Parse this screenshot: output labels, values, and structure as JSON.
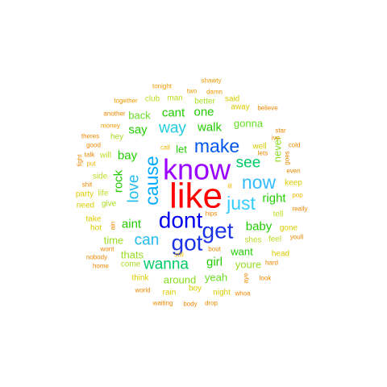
{
  "palette": {
    "red": "#ff0000",
    "purple": "#9900ff",
    "blue": "#0000ee",
    "blue_mid": "#1a33e6",
    "cyan": "#00bfff",
    "sky": "#33ccff",
    "green": "#22cc00",
    "green_light": "#66ee22",
    "lime": "#aaee22",
    "yellow": "#dddd00",
    "gold": "#eebb00",
    "orange": "#ee8800"
  },
  "words": [
    {
      "text": "like",
      "weight": 9,
      "color": "#ff0000"
    },
    {
      "text": "know",
      "weight": 8,
      "color": "#9900ff"
    },
    {
      "text": "dont",
      "weight": 7,
      "color": "#0000ee"
    },
    {
      "text": "got",
      "weight": 7,
      "color": "#1a33e6"
    },
    {
      "text": "get",
      "weight": 7,
      "color": "#1a33e6"
    },
    {
      "text": "make",
      "weight": 6,
      "color": "#0055ee"
    },
    {
      "text": "cause",
      "weight": 6,
      "color": "#00aaff"
    },
    {
      "text": "just",
      "weight": 6,
      "color": "#33ccff"
    },
    {
      "text": "now",
      "weight": 6,
      "color": "#33bbff"
    },
    {
      "text": "love",
      "weight": 5,
      "color": "#22bbee"
    },
    {
      "text": "way",
      "weight": 5,
      "color": "#22ccdd"
    },
    {
      "text": "can",
      "weight": 5,
      "color": "#22bbee"
    },
    {
      "text": "wanna",
      "weight": 5,
      "color": "#00cc66"
    },
    {
      "text": "see",
      "weight": 5,
      "color": "#00cc66"
    },
    {
      "text": "baby",
      "weight": 4,
      "color": "#22cc00"
    },
    {
      "text": "girl",
      "weight": 4,
      "color": "#22cc00"
    },
    {
      "text": "aint",
      "weight": 4,
      "color": "#22cc00"
    },
    {
      "text": "right",
      "weight": 4,
      "color": "#22cc00"
    },
    {
      "text": "walk",
      "weight": 4,
      "color": "#22cc00"
    },
    {
      "text": "rock",
      "weight": 4,
      "color": "#22cc00"
    },
    {
      "text": "bay",
      "weight": 4,
      "color": "#22cc00"
    },
    {
      "text": "say",
      "weight": 4,
      "color": "#22cc00"
    },
    {
      "text": "cant",
      "weight": 4,
      "color": "#22cc00"
    },
    {
      "text": "one",
      "weight": 4,
      "color": "#22cc00"
    },
    {
      "text": "back",
      "weight": 3,
      "color": "#66dd22"
    },
    {
      "text": "let",
      "weight": 3,
      "color": "#22cc00"
    },
    {
      "text": "gonna",
      "weight": 3,
      "color": "#66dd22"
    },
    {
      "text": "want",
      "weight": 3,
      "color": "#22cc00"
    },
    {
      "text": "yeah",
      "weight": 3,
      "color": "#66dd22"
    },
    {
      "text": "around",
      "weight": 3,
      "color": "#88dd22"
    },
    {
      "text": "youre",
      "weight": 3,
      "color": "#99dd22"
    },
    {
      "text": "never",
      "weight": 3,
      "color": "#88dd22"
    },
    {
      "text": "time",
      "weight": 3,
      "color": "#99dd22"
    },
    {
      "text": "thats",
      "weight": 3,
      "color": "#99dd22"
    },
    {
      "text": "come",
      "weight": 2,
      "color": "#aadd22"
    },
    {
      "text": "better",
      "weight": 2,
      "color": "#aadd22"
    },
    {
      "text": "man",
      "weight": 2,
      "color": "#bbdd22"
    },
    {
      "text": "club",
      "weight": 2,
      "color": "#bbdd22"
    },
    {
      "text": "hey",
      "weight": 2,
      "color": "#aadd22"
    },
    {
      "text": "give",
      "weight": 2,
      "color": "#aadd22"
    },
    {
      "text": "side",
      "weight": 2,
      "color": "#bbdd22"
    },
    {
      "text": "life",
      "weight": 2,
      "color": "#bbdd22"
    },
    {
      "text": "will",
      "weight": 2,
      "color": "#bbdd22"
    },
    {
      "text": "tell",
      "weight": 2,
      "color": "#bbdd22"
    },
    {
      "text": "feel",
      "weight": 2,
      "color": "#bbdd22"
    },
    {
      "text": "shes",
      "weight": 2,
      "color": "#bbdd22"
    },
    {
      "text": "head",
      "weight": 2,
      "color": "#ddcc00"
    },
    {
      "text": "away",
      "weight": 2,
      "color": "#ddcc00"
    },
    {
      "text": "said",
      "weight": 2,
      "color": "#ddcc00"
    },
    {
      "text": "think",
      "weight": 2,
      "color": "#ddcc00"
    },
    {
      "text": "boy",
      "weight": 2,
      "color": "#ddcc00"
    },
    {
      "text": "night",
      "weight": 2,
      "color": "#ddcc00"
    },
    {
      "text": "rain",
      "weight": 2,
      "color": "#ddcc00"
    },
    {
      "text": "need",
      "weight": 2,
      "color": "#ddcc00"
    },
    {
      "text": "party",
      "weight": 2,
      "color": "#ddcc00"
    },
    {
      "text": "take",
      "weight": 2,
      "color": "#ddcc00"
    },
    {
      "text": "hot",
      "weight": 2,
      "color": "#ddcc00"
    },
    {
      "text": "well",
      "weight": 2,
      "color": "#ddcc00"
    },
    {
      "text": "gone",
      "weight": 2,
      "color": "#ddcc00"
    },
    {
      "text": "keep",
      "weight": 2,
      "color": "#ddcc00"
    },
    {
      "text": "pop",
      "weight": 1,
      "color": "#eebb00"
    },
    {
      "text": "ill",
      "weight": 1,
      "color": "#eebb00"
    },
    {
      "text": "call",
      "weight": 1,
      "color": "#eebb00"
    },
    {
      "text": "still",
      "weight": 1,
      "color": "#eebb00"
    },
    {
      "text": "put",
      "weight": 1,
      "color": "#eebb00"
    },
    {
      "text": "two",
      "weight": 1,
      "color": "#ee9900"
    },
    {
      "text": "shawty",
      "weight": 1,
      "color": "#ee9900"
    },
    {
      "text": "tonight",
      "weight": 1,
      "color": "#ee9900"
    },
    {
      "text": "damn",
      "weight": 1,
      "color": "#ee9900"
    },
    {
      "text": "together",
      "weight": 1,
      "color": "#ee9900"
    },
    {
      "text": "believe",
      "weight": 1,
      "color": "#ee8800"
    },
    {
      "text": "another",
      "weight": 1,
      "color": "#ee8800"
    },
    {
      "text": "money",
      "weight": 1,
      "color": "#ee9900"
    },
    {
      "text": "star",
      "weight": 1,
      "color": "#ee8800"
    },
    {
      "text": "ive",
      "weight": 1,
      "color": "#ee8800"
    },
    {
      "text": "theres",
      "weight": 1,
      "color": "#ee8800"
    },
    {
      "text": "good",
      "weight": 1,
      "color": "#ee8800"
    },
    {
      "text": "talk",
      "weight": 1,
      "color": "#ee8800"
    },
    {
      "text": "cold",
      "weight": 1,
      "color": "#ee8800"
    },
    {
      "text": "lets",
      "weight": 1,
      "color": "#ee8800"
    },
    {
      "text": "fight",
      "weight": 1,
      "color": "#ee8800"
    },
    {
      "text": "goes",
      "weight": 1,
      "color": "#ee8800"
    },
    {
      "text": "even",
      "weight": 1,
      "color": "#ee8800"
    },
    {
      "text": "shit",
      "weight": 1,
      "color": "#ee8800"
    },
    {
      "text": "really",
      "weight": 1,
      "color": "#ee8800"
    },
    {
      "text": "hips",
      "weight": 1,
      "color": "#ee8800"
    },
    {
      "text": "youll",
      "weight": 1,
      "color": "#ee8800"
    },
    {
      "text": "ain",
      "weight": 1,
      "color": "#ee8800"
    },
    {
      "text": "bout",
      "weight": 1,
      "color": "#ee8800"
    },
    {
      "text": "nobody",
      "weight": 1,
      "color": "#ee8800"
    },
    {
      "text": "hard",
      "weight": 1,
      "color": "#ee8800"
    },
    {
      "text": "wont",
      "weight": 1,
      "color": "#ee8800"
    },
    {
      "text": "home",
      "weight": 1,
      "color": "#ee8800"
    },
    {
      "text": "look",
      "weight": 1,
      "color": "#ee8800"
    },
    {
      "text": "aye",
      "weight": 1,
      "color": "#ee8800"
    },
    {
      "text": "whoa",
      "weight": 1,
      "color": "#ee8800"
    },
    {
      "text": "world",
      "weight": 1,
      "color": "#ee8800"
    },
    {
      "text": "waiting",
      "weight": 1,
      "color": "#ee8800"
    },
    {
      "text": "body",
      "weight": 1,
      "color": "#ee8800"
    },
    {
      "text": "drop",
      "weight": 1,
      "color": "#ee8800"
    }
  ]
}
